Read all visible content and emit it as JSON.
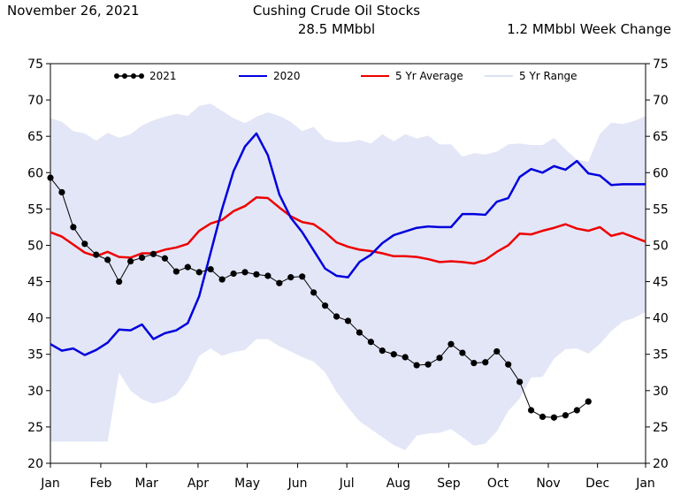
{
  "header": {
    "date": "November 26, 2021",
    "title": "Cushing Crude Oil Stocks",
    "level": "28.5 MMbbl",
    "week_change": "1.2 MMbbl Week Change"
  },
  "chart_data": {
    "type": "line",
    "title": "Cushing Crude Oil Stocks",
    "ylabel": "",
    "xlabel": "",
    "ylim": [
      20,
      75
    ],
    "xlim": [
      1,
      53
    ],
    "yticks": [
      20,
      25,
      30,
      35,
      40,
      45,
      50,
      55,
      60,
      65,
      70,
      75
    ],
    "xticks": [
      {
        "label": "Jan",
        "week": 1
      },
      {
        "label": "Feb",
        "week": 5.4
      },
      {
        "label": "Mar",
        "week": 9.4
      },
      {
        "label": "Apr",
        "week": 13.9
      },
      {
        "label": "May",
        "week": 18.2
      },
      {
        "label": "Jun",
        "week": 22.6
      },
      {
        "label": "Jul",
        "week": 26.9
      },
      {
        "label": "Aug",
        "week": 31.4
      },
      {
        "label": "Sep",
        "week": 35.8
      },
      {
        "label": "Oct",
        "week": 40.1
      },
      {
        "label": "Nov",
        "week": 44.5
      },
      {
        "label": "Dec",
        "week": 48.8
      },
      {
        "label": "Jan",
        "week": 53
      }
    ],
    "legend": [
      "2021",
      "2020",
      "5 Yr Average",
      "5 Yr Range"
    ],
    "legend_position": "top",
    "grid": false,
    "colors": {
      "s2021": "#000000",
      "s2020": "#0000dd",
      "avg": "#ee0000",
      "range": "#e3e6f7"
    },
    "weeks": [
      1,
      2,
      3,
      4,
      5,
      6,
      7,
      8,
      9,
      10,
      11,
      12,
      13,
      14,
      15,
      16,
      17,
      18,
      19,
      20,
      21,
      22,
      23,
      24,
      25,
      26,
      27,
      28,
      29,
      30,
      31,
      32,
      33,
      34,
      35,
      36,
      37,
      38,
      39,
      40,
      41,
      42,
      43,
      44,
      45,
      46,
      47,
      48,
      49,
      50,
      51,
      52,
      53
    ],
    "series": [
      {
        "name": "2021",
        "values": [
          59.3,
          57.3,
          52.5,
          50.2,
          48.7,
          48.0,
          45.0,
          47.8,
          48.3,
          48.8,
          48.2,
          46.4,
          47.0,
          46.3,
          46.7,
          45.3,
          46.1,
          46.3,
          46.0,
          45.8,
          44.8,
          45.6,
          45.7,
          43.5,
          41.7,
          40.2,
          39.6,
          38.0,
          36.7,
          35.5,
          35.0,
          34.6,
          33.5,
          33.6,
          34.5,
          36.4,
          35.2,
          33.8,
          33.9,
          35.4,
          33.6,
          31.2,
          27.3,
          26.4,
          26.3,
          26.6,
          27.3,
          28.5
        ]
      },
      {
        "name": "2020",
        "values": [
          36.4,
          35.5,
          35.8,
          34.9,
          35.6,
          36.6,
          38.4,
          38.3,
          39.1,
          37.1,
          37.9,
          38.3,
          39.3,
          43.0,
          49.0,
          55.0,
          60.2,
          63.6,
          65.4,
          62.4,
          57.0,
          53.8,
          51.8,
          49.3,
          46.8,
          45.8,
          45.6,
          47.7,
          48.7,
          50.3,
          51.4,
          51.9,
          52.4,
          52.6,
          52.5,
          52.5,
          54.3,
          54.3,
          54.2,
          56.0,
          56.5,
          59.4,
          60.5,
          60.0,
          60.9,
          60.4,
          61.6,
          59.9,
          59.6,
          58.3,
          58.4,
          58.4,
          58.4
        ]
      },
      {
        "name": "5 Yr Average",
        "values": [
          51.8,
          51.2,
          50.1,
          49.0,
          48.5,
          49.1,
          48.4,
          48.3,
          48.9,
          48.9,
          49.4,
          49.7,
          50.2,
          52.0,
          53.0,
          53.5,
          54.7,
          55.4,
          56.6,
          56.5,
          55.2,
          54.0,
          53.2,
          52.9,
          51.8,
          50.4,
          49.8,
          49.4,
          49.2,
          48.9,
          48.5,
          48.5,
          48.4,
          48.1,
          47.7,
          47.8,
          47.7,
          47.5,
          48.0,
          49.1,
          50.0,
          51.6,
          51.5,
          52.0,
          52.4,
          52.9,
          52.3,
          52.0,
          52.5,
          51.3,
          51.7,
          51.1,
          50.5
        ]
      },
      {
        "name": "5 Yr Range",
        "upper": [
          67.5,
          67.0,
          65.7,
          65.4,
          64.4,
          65.5,
          64.8,
          65.3,
          66.5,
          67.2,
          67.7,
          68.1,
          67.8,
          69.2,
          69.5,
          68.5,
          67.5,
          66.8,
          67.7,
          68.3,
          67.8,
          67.0,
          65.7,
          66.3,
          64.6,
          64.2,
          64.2,
          64.5,
          64.0,
          65.3,
          64.3,
          65.3,
          64.7,
          65.1,
          63.9,
          63.9,
          62.2,
          62.7,
          62.5,
          62.9,
          63.9,
          64.0,
          63.8,
          63.8,
          64.8,
          63.2,
          61.8,
          61.5,
          65.3,
          66.9,
          66.7,
          67.1,
          67.8
        ],
        "lower": [
          23.0,
          23.0,
          23.0,
          23.0,
          23.0,
          23.0,
          32.5,
          30.0,
          28.8,
          28.2,
          28.6,
          29.4,
          31.5,
          34.8,
          35.8,
          34.8,
          35.3,
          35.6,
          37.1,
          37.1,
          36.1,
          35.4,
          34.6,
          34.0,
          32.5,
          29.8,
          27.7,
          25.8,
          24.7,
          23.6,
          22.5,
          21.8,
          23.8,
          24.1,
          24.2,
          24.7,
          23.6,
          22.4,
          22.7,
          24.4,
          27.2,
          28.9,
          31.8,
          31.9,
          34.4,
          35.7,
          35.8,
          35.1,
          36.4,
          38.2,
          39.5,
          40.0,
          40.8
        ]
      }
    ]
  }
}
